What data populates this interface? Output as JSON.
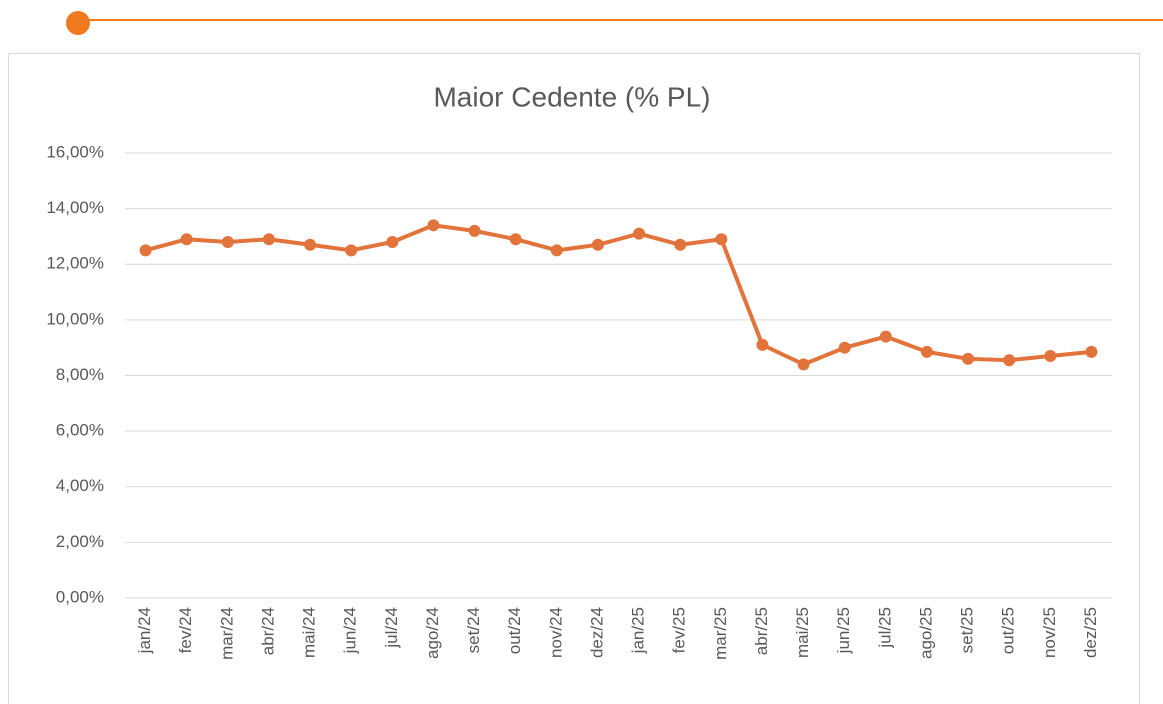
{
  "chart_data": {
    "type": "line",
    "title": "Maior Cedente (% PL)",
    "categories": [
      "jan/24",
      "fev/24",
      "mar/24",
      "abr/24",
      "mai/24",
      "jun/24",
      "jul/24",
      "ago/24",
      "set/24",
      "out/24",
      "nov/24",
      "dez/24",
      "jan/25",
      "fev/25",
      "mar/25",
      "abr/25",
      "mai/25",
      "jun/25",
      "jul/25",
      "ago/25",
      "set/25",
      "out/25",
      "nov/25",
      "dez/25"
    ],
    "series": [
      {
        "color": "#e2733a",
        "values": [
          12.5,
          12.9,
          12.8,
          12.9,
          12.7,
          12.5,
          12.8,
          13.4,
          13.2,
          12.9,
          12.5,
          12.7,
          13.1,
          12.7,
          12.9,
          9.1,
          8.4,
          9.0,
          9.4,
          8.85,
          8.6,
          8.55,
          8.7,
          8.85
        ]
      }
    ],
    "ylim": [
      0,
      16
    ],
    "yticks": [
      {
        "value": 0,
        "label": "0,00%"
      },
      {
        "value": 2,
        "label": "2,00%"
      },
      {
        "value": 4,
        "label": "4,00%"
      },
      {
        "value": 6,
        "label": "6,00%"
      },
      {
        "value": 8,
        "label": "8,00%"
      },
      {
        "value": 10,
        "label": "10,00%"
      },
      {
        "value": 12,
        "label": "12,00%"
      },
      {
        "value": 14,
        "label": "14,00%"
      },
      {
        "value": 16,
        "label": "16,00%"
      }
    ],
    "grid": true
  }
}
